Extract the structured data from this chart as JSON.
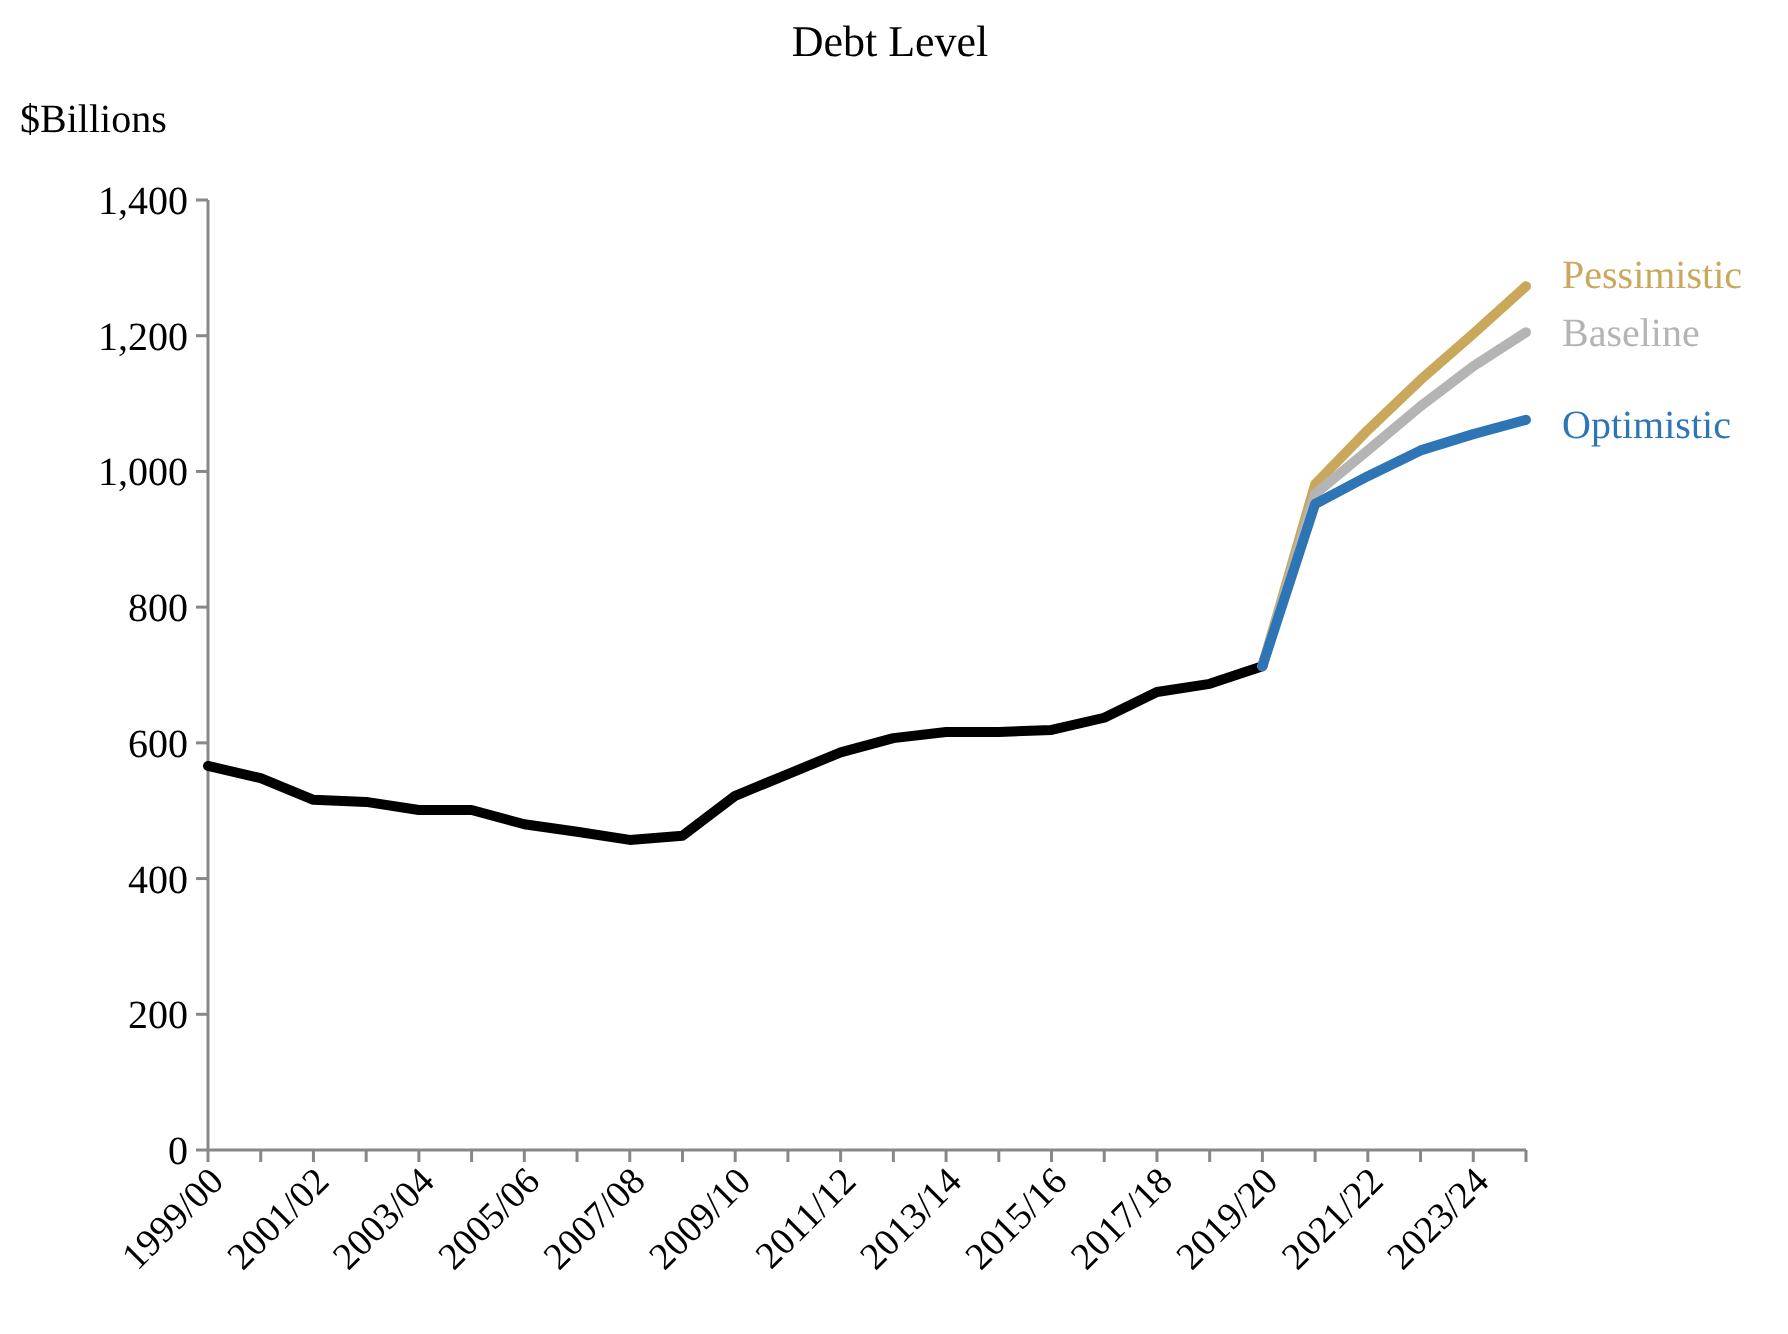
{
  "chart_data": {
    "type": "line",
    "title": "Debt Level",
    "ylabel": "$Billions",
    "categories": [
      "1999/00",
      null,
      "2001/02",
      null,
      "2003/04",
      null,
      "2005/06",
      null,
      "2007/08",
      null,
      "2009/10",
      null,
      "2011/12",
      null,
      "2013/14",
      null,
      "2015/16",
      null,
      "2017/18",
      null,
      "2019/20",
      null,
      "2021/22",
      null,
      "2023/24",
      null
    ],
    "series": [
      {
        "color": "#000000",
        "values": [
          566,
          548,
          516,
          513,
          501,
          501,
          480,
          469,
          457,
          463,
          522,
          554,
          586,
          607,
          616,
          616,
          619,
          637,
          675,
          687,
          713,
          null,
          null,
          null,
          null,
          null
        ]
      },
      {
        "name": "Pessimistic",
        "color": "#c9a85c",
        "values": [
          null,
          null,
          null,
          null,
          null,
          null,
          null,
          null,
          null,
          null,
          null,
          null,
          null,
          null,
          null,
          null,
          null,
          null,
          null,
          null,
          713,
          981,
          1061,
          1135,
          1203,
          1273
        ]
      },
      {
        "name": "Baseline",
        "color": "#b4b4b4",
        "values": [
          null,
          null,
          null,
          null,
          null,
          null,
          null,
          null,
          null,
          null,
          null,
          null,
          null,
          null,
          null,
          null,
          null,
          null,
          null,
          null,
          713,
          967,
          1031,
          1096,
          1155,
          1205
        ]
      },
      {
        "name": "Optimistic",
        "color": "#2e75b6",
        "values": [
          null,
          null,
          null,
          null,
          null,
          null,
          null,
          null,
          null,
          null,
          null,
          null,
          null,
          null,
          null,
          null,
          null,
          null,
          null,
          null,
          713,
          952,
          993,
          1031,
          1055,
          1076
        ]
      }
    ],
    "ylim": [
      0,
      1400
    ],
    "yticks": [
      0,
      200,
      400,
      600,
      800,
      {
        "value": 1000,
        "label": "1,000"
      },
      {
        "value": 1200,
        "label": "1,200"
      },
      {
        "value": 1400,
        "label": "1,400"
      }
    ],
    "line_style": "solid",
    "marker": "none"
  }
}
